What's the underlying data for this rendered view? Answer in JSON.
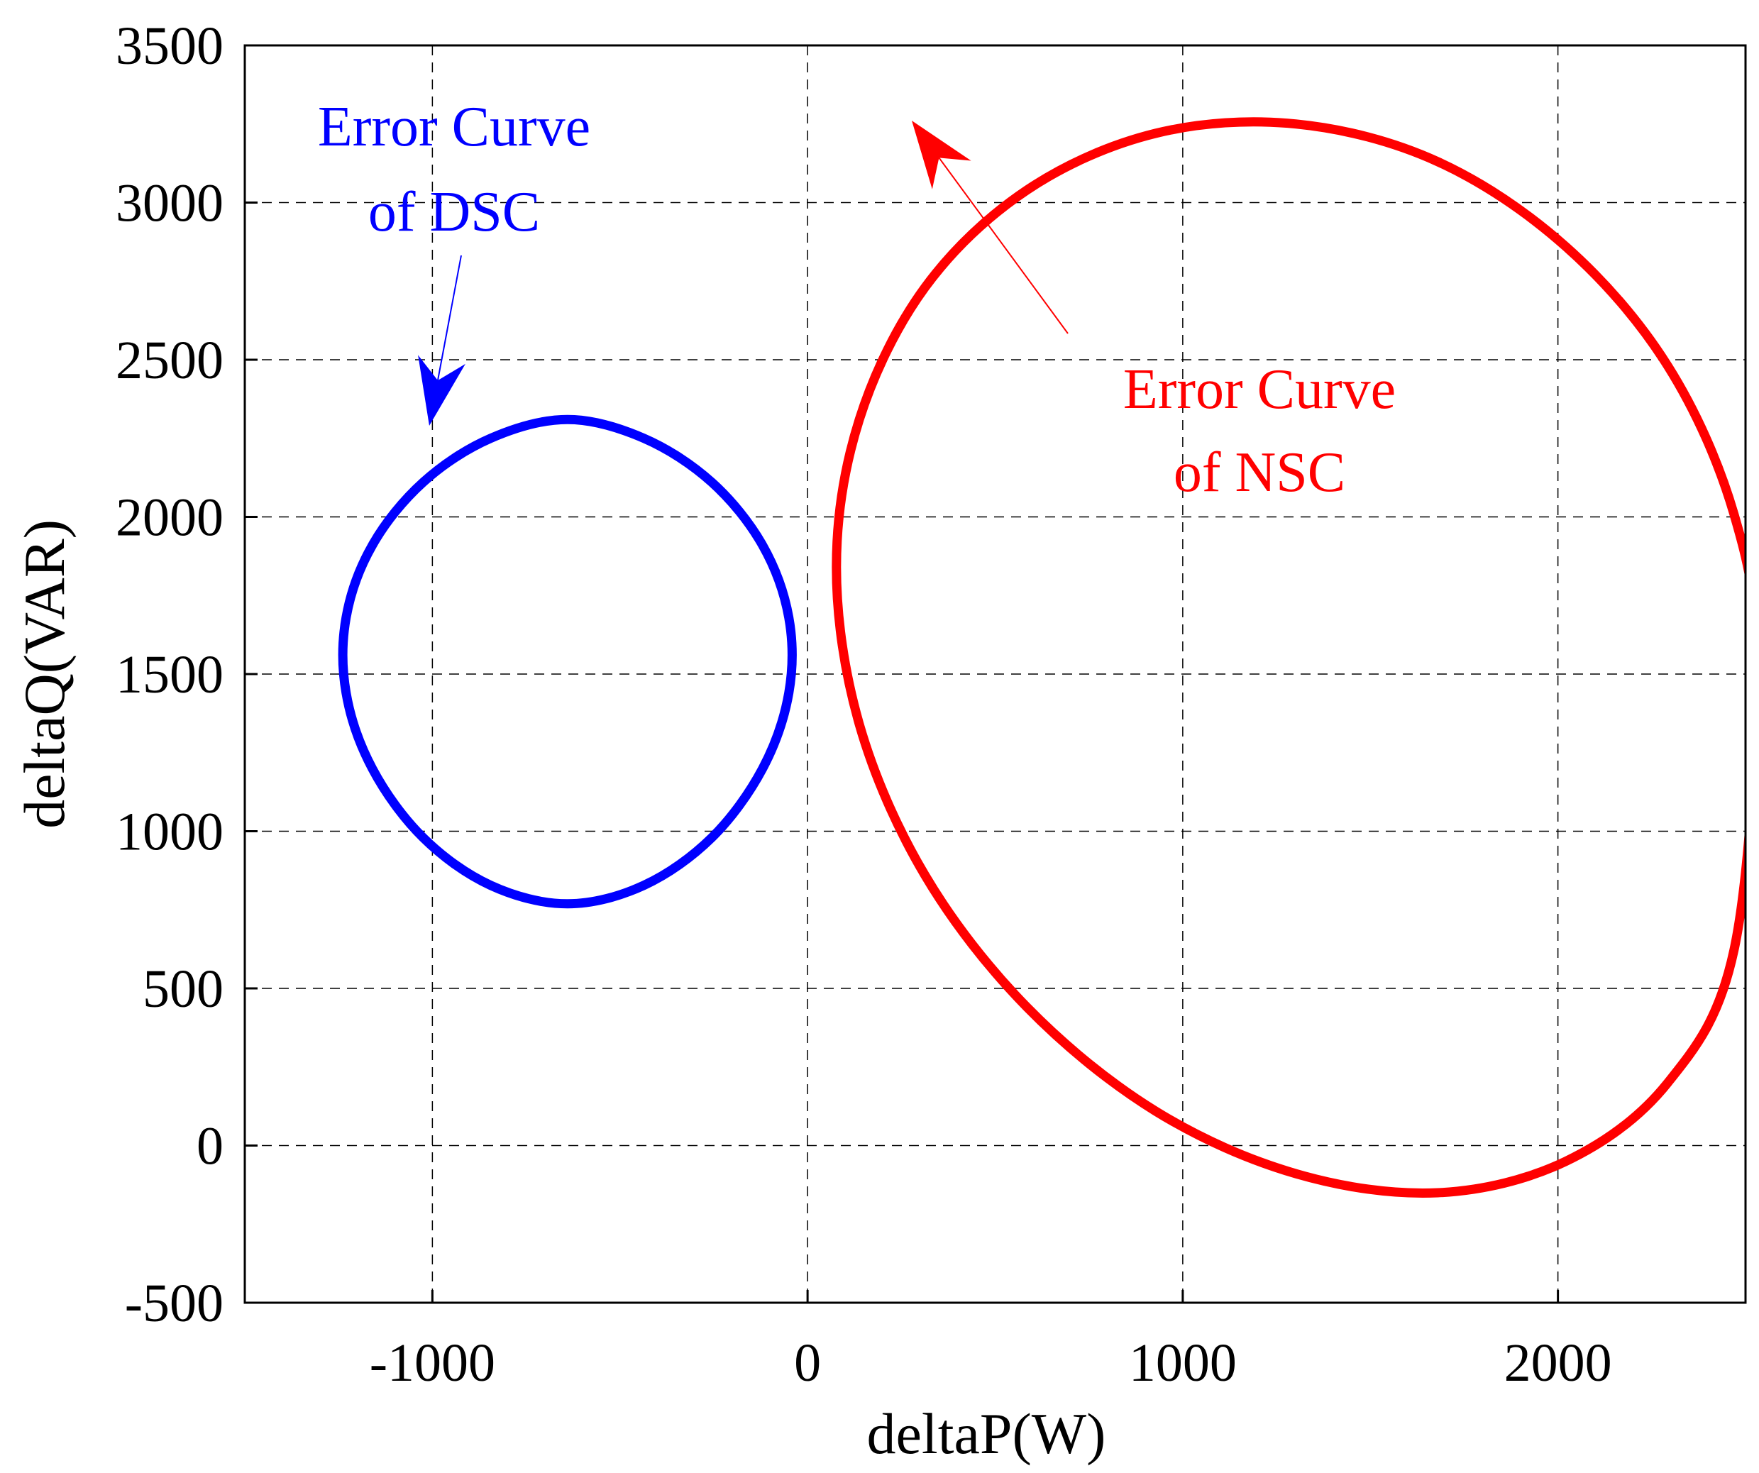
{
  "chart_data": {
    "type": "line",
    "xlabel": "deltaP(W)",
    "ylabel": "deltaQ(VAR)",
    "xlim": [
      -1500,
      2500
    ],
    "ylim": [
      -500,
      3500
    ],
    "xticks": [
      -1000,
      0,
      1000,
      2000
    ],
    "yticks": [
      -500,
      0,
      500,
      1000,
      1500,
      2000,
      2500,
      3000,
      3500
    ],
    "xtick_labels": [
      "-1000",
      "0",
      "1000",
      "2000"
    ],
    "ytick_labels": [
      "-500",
      "0",
      "500",
      "1000",
      "1500",
      "2000",
      "2500",
      "3000",
      "3500"
    ],
    "grid": true,
    "series": [
      {
        "color": "#ff0000",
        "shape": "closed-curve",
        "x": [
          2530,
          2469,
          2293,
          2021,
          1680,
          1303,
          927,
          585,
          313,
          138,
          77,
          138,
          313,
          585,
          927,
          1303,
          1680,
          2021,
          2293,
          2469,
          2530
        ],
        "y": [
          1510,
          2010,
          2480,
          2860,
          3130,
          3250,
          3220,
          3040,
          2730,
          2310,
          1840,
          1340,
          860,
          440,
          110,
          -90,
          -150,
          -50,
          200,
          620,
          1510
        ]
      },
      {
        "color": "#0000ff",
        "shape": "closed-curve",
        "x": [
          -640,
          -436,
          -255,
          -120,
          -50,
          -50,
          -120,
          -255,
          -436,
          -640,
          -845,
          -1025,
          -1160,
          -1230,
          -1230,
          -1160,
          -1025,
          -845,
          -640
        ],
        "y": [
          769,
          828,
          980,
          1199,
          1440,
          1680,
          1910,
          2110,
          2250,
          2310,
          2250,
          2110,
          1910,
          1680,
          1440,
          1199,
          980,
          828,
          769
        ]
      }
    ],
    "annotations": [
      {
        "text_lines": [
          "Error Curve",
          "of DSC"
        ],
        "color": "#0000ff",
        "arrow_to": [
          -1000,
          2240
        ]
      },
      {
        "text_lines": [
          "Error Curve",
          "of NSC"
        ],
        "color": "#ff0000",
        "arrow_to": [
          350,
          3250
        ]
      }
    ]
  }
}
